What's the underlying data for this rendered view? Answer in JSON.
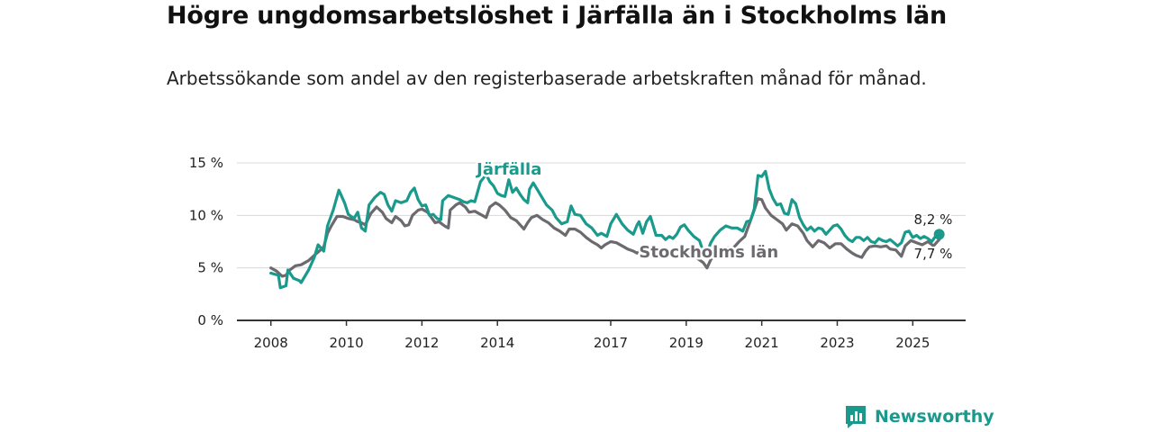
{
  "title": "Högre ungdomsarbetslöshet i Järfälla än i Stockholms län",
  "subtitle": "Arbetssökande som andel av den registerbaserade arbetskraften månad för månad.",
  "brand": {
    "name": "Newsworthy",
    "icon": "newsworthy-logo-icon",
    "color": "#1a9a8c"
  },
  "chart_data": {
    "type": "line",
    "y_ticks": [
      "0 %",
      "5 %",
      "10 %",
      "15 %"
    ],
    "x_ticks": [
      {
        "label": "2008",
        "value": 2008
      },
      {
        "label": "2010",
        "value": 2010
      },
      {
        "label": "2012",
        "value": 2012
      },
      {
        "label": "2014",
        "value": 2014
      },
      {
        "label": "2017",
        "value": 2017
      },
      {
        "label": "2019",
        "value": 2019
      },
      {
        "label": "2021",
        "value": 2021
      },
      {
        "label": "2023",
        "value": 2023
      },
      {
        "label": "2025",
        "value": 2025
      }
    ],
    "xlim": [
      2007.1,
      2026.4
    ],
    "ylim": [
      0,
      15
    ],
    "grid": true,
    "series": [
      {
        "name": "Järfälla",
        "color": "#1a9a8c",
        "end_label": "8,2 %",
        "points": [
          [
            2008.0,
            4.5
          ],
          [
            2008.2,
            4.3
          ],
          [
            2008.25,
            3.1
          ],
          [
            2008.4,
            3.3
          ],
          [
            2008.45,
            4.8
          ],
          [
            2008.6,
            4.0
          ],
          [
            2008.75,
            3.8
          ],
          [
            2008.8,
            3.6
          ],
          [
            2009.0,
            4.8
          ],
          [
            2009.15,
            6.0
          ],
          [
            2009.25,
            7.2
          ],
          [
            2009.4,
            6.6
          ],
          [
            2009.5,
            9.0
          ],
          [
            2009.65,
            10.5
          ],
          [
            2009.8,
            12.4
          ],
          [
            2009.95,
            11.2
          ],
          [
            2010.05,
            10.1
          ],
          [
            2010.2,
            9.7
          ],
          [
            2010.3,
            10.3
          ],
          [
            2010.4,
            8.8
          ],
          [
            2010.5,
            8.5
          ],
          [
            2010.6,
            11.0
          ],
          [
            2010.75,
            11.7
          ],
          [
            2010.9,
            12.2
          ],
          [
            2011.0,
            12.0
          ],
          [
            2011.1,
            11.0
          ],
          [
            2011.2,
            10.4
          ],
          [
            2011.3,
            11.4
          ],
          [
            2011.45,
            11.2
          ],
          [
            2011.6,
            11.4
          ],
          [
            2011.7,
            12.2
          ],
          [
            2011.8,
            12.6
          ],
          [
            2011.9,
            11.5
          ],
          [
            2012.0,
            10.9
          ],
          [
            2012.1,
            11.0
          ],
          [
            2012.2,
            10.0
          ],
          [
            2012.3,
            10.1
          ],
          [
            2012.4,
            9.7
          ],
          [
            2012.5,
            9.6
          ],
          [
            2012.55,
            11.4
          ],
          [
            2012.7,
            11.9
          ],
          [
            2012.85,
            11.7
          ],
          [
            2013.0,
            11.5
          ],
          [
            2013.1,
            11.3
          ],
          [
            2013.2,
            11.2
          ],
          [
            2013.3,
            11.4
          ],
          [
            2013.4,
            11.3
          ],
          [
            2013.55,
            13.2
          ],
          [
            2013.7,
            13.9
          ],
          [
            2013.8,
            13.2
          ],
          [
            2013.9,
            12.8
          ],
          [
            2014.0,
            12.1
          ],
          [
            2014.1,
            11.9
          ],
          [
            2014.2,
            11.8
          ],
          [
            2014.3,
            13.4
          ],
          [
            2014.4,
            12.2
          ],
          [
            2014.5,
            12.6
          ],
          [
            2014.6,
            12.0
          ],
          [
            2014.7,
            11.5
          ],
          [
            2014.8,
            11.2
          ],
          [
            2014.85,
            12.5
          ],
          [
            2014.95,
            13.1
          ],
          [
            2015.05,
            12.5
          ],
          [
            2015.15,
            11.9
          ],
          [
            2015.3,
            11.0
          ],
          [
            2015.45,
            10.5
          ],
          [
            2015.55,
            9.8
          ],
          [
            2015.7,
            9.2
          ],
          [
            2015.85,
            9.4
          ],
          [
            2015.95,
            10.9
          ],
          [
            2016.05,
            10.1
          ],
          [
            2016.2,
            10.0
          ],
          [
            2016.35,
            9.2
          ],
          [
            2016.5,
            8.8
          ],
          [
            2016.65,
            8.1
          ],
          [
            2016.75,
            8.3
          ],
          [
            2016.9,
            8.0
          ],
          [
            2017.0,
            9.2
          ],
          [
            2017.15,
            10.1
          ],
          [
            2017.3,
            9.2
          ],
          [
            2017.45,
            8.6
          ],
          [
            2017.6,
            8.2
          ],
          [
            2017.7,
            9.1
          ],
          [
            2017.75,
            9.4
          ],
          [
            2017.85,
            8.3
          ],
          [
            2017.95,
            9.4
          ],
          [
            2018.05,
            9.9
          ],
          [
            2018.2,
            8.1
          ],
          [
            2018.35,
            8.1
          ],
          [
            2018.45,
            7.7
          ],
          [
            2018.55,
            8.0
          ],
          [
            2018.65,
            7.8
          ],
          [
            2018.75,
            8.2
          ],
          [
            2018.85,
            8.9
          ],
          [
            2018.95,
            9.1
          ],
          [
            2019.05,
            8.6
          ],
          [
            2019.2,
            8.0
          ],
          [
            2019.35,
            7.6
          ],
          [
            2019.5,
            6.0
          ],
          [
            2019.65,
            7.4
          ],
          [
            2019.75,
            8.0
          ],
          [
            2019.9,
            8.6
          ],
          [
            2020.05,
            9.0
          ],
          [
            2020.2,
            8.8
          ],
          [
            2020.35,
            8.8
          ],
          [
            2020.5,
            8.5
          ],
          [
            2020.6,
            9.4
          ],
          [
            2020.7,
            9.5
          ],
          [
            2020.8,
            10.6
          ],
          [
            2020.9,
            13.8
          ],
          [
            2021.0,
            13.7
          ],
          [
            2021.1,
            14.2
          ],
          [
            2021.2,
            12.5
          ],
          [
            2021.3,
            11.6
          ],
          [
            2021.4,
            11.0
          ],
          [
            2021.5,
            11.1
          ],
          [
            2021.6,
            10.2
          ],
          [
            2021.7,
            10.1
          ],
          [
            2021.8,
            11.5
          ],
          [
            2021.9,
            11.1
          ],
          [
            2022.0,
            9.8
          ],
          [
            2022.1,
            9.1
          ],
          [
            2022.2,
            8.6
          ],
          [
            2022.3,
            8.9
          ],
          [
            2022.4,
            8.5
          ],
          [
            2022.5,
            8.8
          ],
          [
            2022.6,
            8.7
          ],
          [
            2022.7,
            8.2
          ],
          [
            2022.8,
            8.6
          ],
          [
            2022.9,
            9.0
          ],
          [
            2023.0,
            9.1
          ],
          [
            2023.1,
            8.7
          ],
          [
            2023.2,
            8.1
          ],
          [
            2023.3,
            7.7
          ],
          [
            2023.4,
            7.5
          ],
          [
            2023.5,
            7.9
          ],
          [
            2023.6,
            7.9
          ],
          [
            2023.7,
            7.6
          ],
          [
            2023.8,
            7.9
          ],
          [
            2023.9,
            7.5
          ],
          [
            2024.0,
            7.4
          ],
          [
            2024.1,
            7.8
          ],
          [
            2024.2,
            7.6
          ],
          [
            2024.3,
            7.5
          ],
          [
            2024.4,
            7.7
          ],
          [
            2024.5,
            7.4
          ],
          [
            2024.6,
            7.1
          ],
          [
            2024.7,
            7.4
          ],
          [
            2024.8,
            8.4
          ],
          [
            2024.9,
            8.5
          ],
          [
            2025.0,
            7.9
          ],
          [
            2025.1,
            8.1
          ],
          [
            2025.2,
            7.8
          ],
          [
            2025.3,
            8.0
          ],
          [
            2025.4,
            7.8
          ],
          [
            2025.5,
            7.5
          ],
          [
            2025.6,
            8.0
          ],
          [
            2025.7,
            8.2
          ]
        ]
      },
      {
        "name": "Stockholms län",
        "color": "#6c6a6e",
        "end_label": "7,7 %",
        "points": [
          [
            2008.0,
            5.0
          ],
          [
            2008.15,
            4.7
          ],
          [
            2008.3,
            4.2
          ],
          [
            2008.4,
            4.3
          ],
          [
            2008.5,
            4.8
          ],
          [
            2008.65,
            5.2
          ],
          [
            2008.8,
            5.3
          ],
          [
            2008.9,
            5.5
          ],
          [
            2009.0,
            5.7
          ],
          [
            2009.15,
            6.2
          ],
          [
            2009.25,
            6.5
          ],
          [
            2009.4,
            7.0
          ],
          [
            2009.5,
            8.3
          ],
          [
            2009.6,
            9.0
          ],
          [
            2009.75,
            9.9
          ],
          [
            2009.9,
            9.9
          ],
          [
            2010.05,
            9.7
          ],
          [
            2010.2,
            9.6
          ],
          [
            2010.3,
            9.4
          ],
          [
            2010.4,
            9.3
          ],
          [
            2010.5,
            9.1
          ],
          [
            2010.65,
            10.2
          ],
          [
            2010.8,
            10.8
          ],
          [
            2010.95,
            10.3
          ],
          [
            2011.05,
            9.7
          ],
          [
            2011.2,
            9.3
          ],
          [
            2011.3,
            9.9
          ],
          [
            2011.45,
            9.5
          ],
          [
            2011.55,
            9.0
          ],
          [
            2011.65,
            9.1
          ],
          [
            2011.75,
            10.0
          ],
          [
            2011.9,
            10.5
          ],
          [
            2012.0,
            10.6
          ],
          [
            2012.15,
            10.3
          ],
          [
            2012.25,
            9.8
          ],
          [
            2012.35,
            9.3
          ],
          [
            2012.45,
            9.4
          ],
          [
            2012.6,
            9.0
          ],
          [
            2012.7,
            8.8
          ],
          [
            2012.75,
            10.5
          ],
          [
            2012.9,
            11.0
          ],
          [
            2013.0,
            11.2
          ],
          [
            2013.15,
            10.8
          ],
          [
            2013.25,
            10.3
          ],
          [
            2013.4,
            10.4
          ],
          [
            2013.55,
            10.1
          ],
          [
            2013.7,
            9.8
          ],
          [
            2013.8,
            10.8
          ],
          [
            2013.95,
            11.2
          ],
          [
            2014.05,
            11.0
          ],
          [
            2014.2,
            10.5
          ],
          [
            2014.35,
            9.8
          ],
          [
            2014.5,
            9.5
          ],
          [
            2014.6,
            9.1
          ],
          [
            2014.7,
            8.7
          ],
          [
            2014.8,
            9.3
          ],
          [
            2014.9,
            9.8
          ],
          [
            2015.05,
            10.0
          ],
          [
            2015.2,
            9.6
          ],
          [
            2015.35,
            9.3
          ],
          [
            2015.5,
            8.8
          ],
          [
            2015.65,
            8.5
          ],
          [
            2015.8,
            8.1
          ],
          [
            2015.9,
            8.7
          ],
          [
            2016.05,
            8.7
          ],
          [
            2016.2,
            8.4
          ],
          [
            2016.35,
            7.9
          ],
          [
            2016.5,
            7.5
          ],
          [
            2016.65,
            7.2
          ],
          [
            2016.75,
            6.9
          ],
          [
            2016.85,
            7.2
          ],
          [
            2017.0,
            7.5
          ],
          [
            2017.15,
            7.4
          ],
          [
            2017.3,
            7.1
          ],
          [
            2017.45,
            6.8
          ],
          [
            2017.6,
            6.6
          ],
          [
            2017.7,
            6.4
          ],
          [
            2017.85,
            6.8
          ],
          [
            2018.0,
            7.1
          ],
          [
            2018.15,
            7.0
          ],
          [
            2018.3,
            6.8
          ],
          [
            2018.45,
            6.4
          ],
          [
            2018.6,
            6.1
          ],
          [
            2018.75,
            6.1
          ],
          [
            2018.9,
            6.4
          ],
          [
            2019.0,
            6.6
          ],
          [
            2019.15,
            6.4
          ],
          [
            2019.3,
            5.9
          ],
          [
            2019.45,
            5.5
          ],
          [
            2019.55,
            5.0
          ],
          [
            2019.65,
            5.8
          ],
          [
            2019.8,
            6.3
          ],
          [
            2019.95,
            6.6
          ],
          [
            2020.1,
            6.9
          ],
          [
            2020.25,
            6.9
          ],
          [
            2020.4,
            7.5
          ],
          [
            2020.55,
            8.0
          ],
          [
            2020.7,
            9.5
          ],
          [
            2020.8,
            10.5
          ],
          [
            2020.9,
            11.6
          ],
          [
            2021.0,
            11.5
          ],
          [
            2021.1,
            10.7
          ],
          [
            2021.25,
            10.0
          ],
          [
            2021.4,
            9.6
          ],
          [
            2021.55,
            9.2
          ],
          [
            2021.65,
            8.6
          ],
          [
            2021.8,
            9.2
          ],
          [
            2021.95,
            9.0
          ],
          [
            2022.1,
            8.3
          ],
          [
            2022.2,
            7.6
          ],
          [
            2022.35,
            7.0
          ],
          [
            2022.5,
            7.6
          ],
          [
            2022.65,
            7.4
          ],
          [
            2022.8,
            6.9
          ],
          [
            2022.95,
            7.3
          ],
          [
            2023.1,
            7.3
          ],
          [
            2023.25,
            6.8
          ],
          [
            2023.4,
            6.4
          ],
          [
            2023.5,
            6.2
          ],
          [
            2023.65,
            6.0
          ],
          [
            2023.75,
            6.6
          ],
          [
            2023.85,
            7.0
          ],
          [
            2024.0,
            7.1
          ],
          [
            2024.15,
            7.0
          ],
          [
            2024.3,
            7.1
          ],
          [
            2024.4,
            6.8
          ],
          [
            2024.55,
            6.7
          ],
          [
            2024.7,
            6.1
          ],
          [
            2024.8,
            7.1
          ],
          [
            2024.95,
            7.6
          ],
          [
            2025.1,
            7.4
          ],
          [
            2025.25,
            7.2
          ],
          [
            2025.4,
            7.5
          ],
          [
            2025.55,
            7.1
          ],
          [
            2025.7,
            7.7
          ]
        ]
      }
    ]
  }
}
